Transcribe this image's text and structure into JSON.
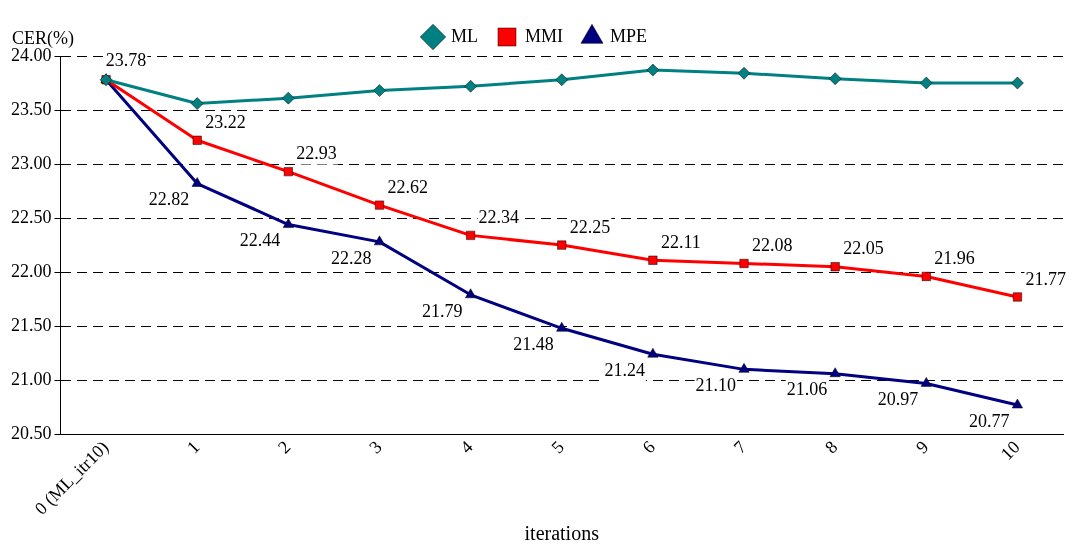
{
  "chart_data": {
    "type": "line",
    "ylabel": "CER(%)",
    "xlabel": "iterations",
    "categories": [
      "0 (ML_itr10)",
      "1",
      "2",
      "3",
      "4",
      "5",
      "6",
      "7",
      "8",
      "9",
      "10"
    ],
    "series": [
      {
        "name": "ML",
        "color": "#008080",
        "marker": "diamond",
        "values": [
          23.78,
          23.56,
          23.61,
          23.68,
          23.72,
          23.78,
          23.87,
          23.84,
          23.79,
          23.75,
          23.75
        ],
        "value_labels": [
          "23.78",
          null,
          null,
          null,
          null,
          null,
          null,
          null,
          null,
          null,
          null
        ]
      },
      {
        "name": "MMI",
        "color": "#ff0000",
        "marker": "square",
        "values": [
          23.78,
          23.22,
          22.93,
          22.62,
          22.34,
          22.25,
          22.11,
          22.08,
          22.05,
          21.96,
          21.77
        ],
        "value_labels": [
          null,
          "23.22",
          "22.93",
          "22.62",
          "22.34",
          "22.25",
          "22.11",
          "22.08",
          "22.05",
          "21.96",
          "21.77"
        ]
      },
      {
        "name": "MPE",
        "color": "#000080",
        "marker": "triangle",
        "values": [
          23.78,
          22.82,
          22.44,
          22.28,
          21.79,
          21.48,
          21.24,
          21.1,
          21.06,
          20.97,
          20.77
        ],
        "value_labels": [
          null,
          "22.82",
          "22.44",
          "22.28",
          "21.79",
          "21.48",
          "21.24",
          "21.10",
          "21.06",
          "20.97",
          "20.77"
        ]
      }
    ],
    "ylim": [
      20.5,
      24.0
    ],
    "yticks": [
      {
        "value": 20.5,
        "label": "20.50"
      },
      {
        "value": 21,
        "label": "21.00"
      },
      {
        "value": 21.5,
        "label": "21.50"
      },
      {
        "value": 22,
        "label": "22.00"
      },
      {
        "value": 22.5,
        "label": "22.50"
      },
      {
        "value": 23,
        "label": "23.00"
      },
      {
        "value": 23.5,
        "label": "23.50"
      },
      {
        "value": 24,
        "label": "24.00"
      }
    ],
    "grid": "y",
    "legend": "top",
    "line_style": "solid"
  }
}
